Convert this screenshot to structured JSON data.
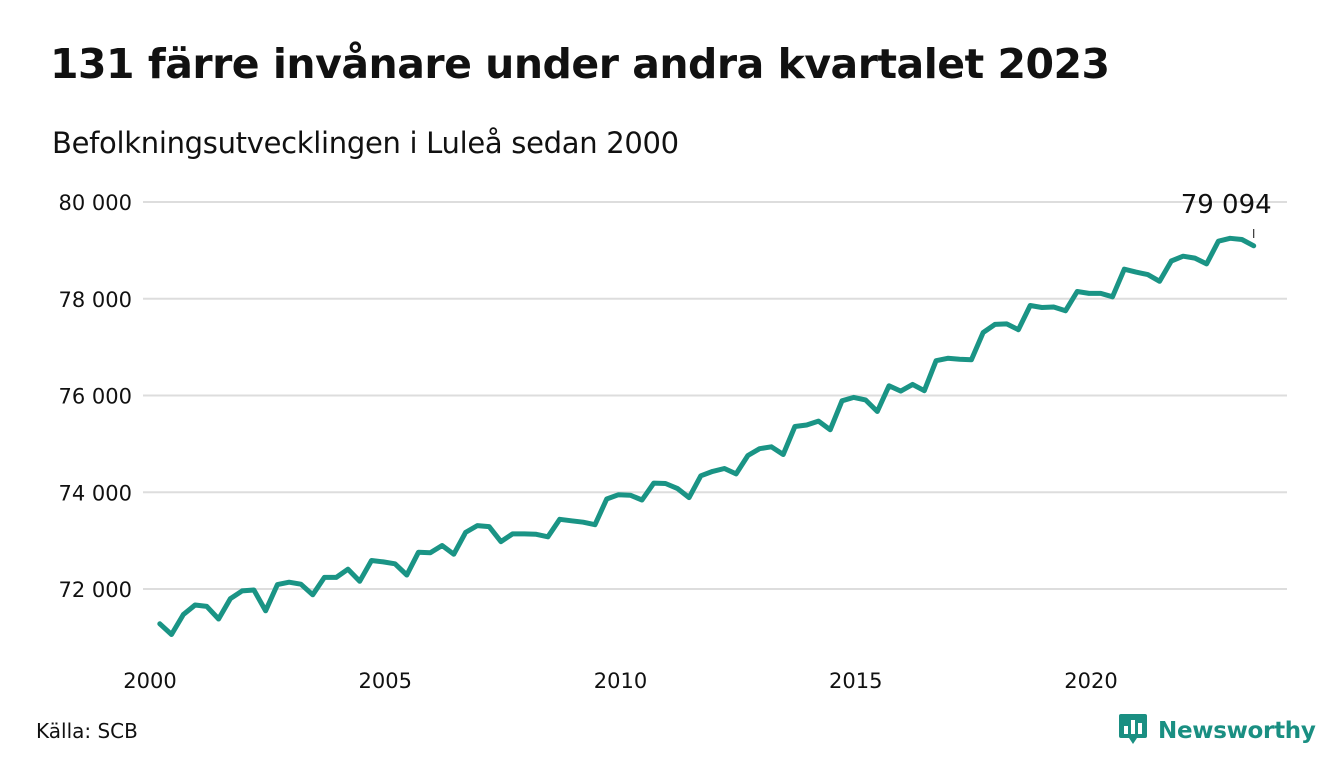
{
  "header": {
    "title": "131 färre invånare under andra kvartalet 2023",
    "subtitle": "Befolkningsutvecklingen i Luleå sedan 2000"
  },
  "footer": {
    "source": "Källa: SCB",
    "brand": "Newsworthy"
  },
  "colors": {
    "line": "#1a9485",
    "grid": "#dddddd",
    "brand": "#1a8f82"
  },
  "icons": {
    "brand_logo": "bar-chart-speech-bubble-icon"
  },
  "chart_data": {
    "type": "line",
    "title": "131 färre invånare under andra kvartalet 2023",
    "subtitle": "Befolkningsutvecklingen i Luleå sedan 2000",
    "xlabel": "",
    "ylabel": "",
    "x_ticks": [
      2000,
      2005,
      2010,
      2015,
      2020
    ],
    "x_tick_labels": [
      "2000",
      "2005",
      "2010",
      "2015",
      "2020"
    ],
    "y_ticks": [
      72000,
      74000,
      76000,
      78000,
      80000
    ],
    "y_tick_labels": [
      "72 000",
      "74 000",
      "76 000",
      "78 000",
      "80 000"
    ],
    "xlim": [
      2000,
      2024
    ],
    "ylim": [
      70900,
      80300
    ],
    "grid": "horizontal",
    "end_label": "79 094",
    "series": [
      {
        "x": [
          2000.25,
          2000.5,
          2000.75,
          2001.0,
          2001.25,
          2001.5,
          2001.75,
          2002.0,
          2002.25,
          2002.5,
          2002.75,
          2003.0,
          2003.25,
          2003.5,
          2003.75,
          2004.0,
          2004.25,
          2004.5,
          2004.75,
          2005.0,
          2005.25,
          2005.5,
          2005.75,
          2006.0,
          2006.25,
          2006.5,
          2006.75,
          2007.0,
          2007.25,
          2007.5,
          2007.75,
          2008.0,
          2008.25,
          2008.5,
          2008.75,
          2009.0,
          2009.25,
          2009.5,
          2009.75,
          2010.0,
          2010.25,
          2010.5,
          2010.75,
          2011.0,
          2011.25,
          2011.5,
          2011.75,
          2012.0,
          2012.25,
          2012.5,
          2012.75,
          2013.0,
          2013.25,
          2013.5,
          2013.75,
          2014.0,
          2014.25,
          2014.5,
          2014.75,
          2015.0,
          2015.25,
          2015.5,
          2015.75,
          2016.0,
          2016.25,
          2016.5,
          2016.75,
          2017.0,
          2017.25,
          2017.5,
          2017.75,
          2018.0,
          2018.25,
          2018.5,
          2018.75,
          2019.0,
          2019.25,
          2019.5,
          2019.75,
          2020.0,
          2020.25,
          2020.5,
          2020.75,
          2021.0,
          2021.25,
          2021.5,
          2021.75,
          2022.0,
          2022.25,
          2022.5,
          2022.75,
          2023.0,
          2023.25,
          2023.5
        ],
        "y": [
          71280,
          71060,
          71470,
          71670,
          71640,
          71380,
          71800,
          71960,
          71980,
          71550,
          72090,
          72140,
          72100,
          71880,
          72240,
          72240,
          72410,
          72160,
          72590,
          72560,
          72520,
          72290,
          72760,
          72750,
          72900,
          72720,
          73170,
          73310,
          73290,
          72980,
          73140,
          73140,
          73130,
          73080,
          73440,
          73410,
          73380,
          73330,
          73860,
          73950,
          73940,
          73840,
          74190,
          74180,
          74080,
          73890,
          74340,
          74430,
          74490,
          74380,
          74760,
          74900,
          74940,
          74780,
          75360,
          75390,
          75470,
          75290,
          75890,
          75960,
          75910,
          75670,
          76200,
          76090,
          76230,
          76100,
          76720,
          76770,
          76750,
          76740,
          77300,
          77470,
          77480,
          77360,
          77860,
          77820,
          77830,
          77750,
          78150,
          78110,
          78110,
          78040,
          78610,
          78550,
          78500,
          78360,
          78780,
          78880,
          78840,
          78720,
          79190,
          79250,
          79225,
          79094
        ]
      }
    ]
  }
}
